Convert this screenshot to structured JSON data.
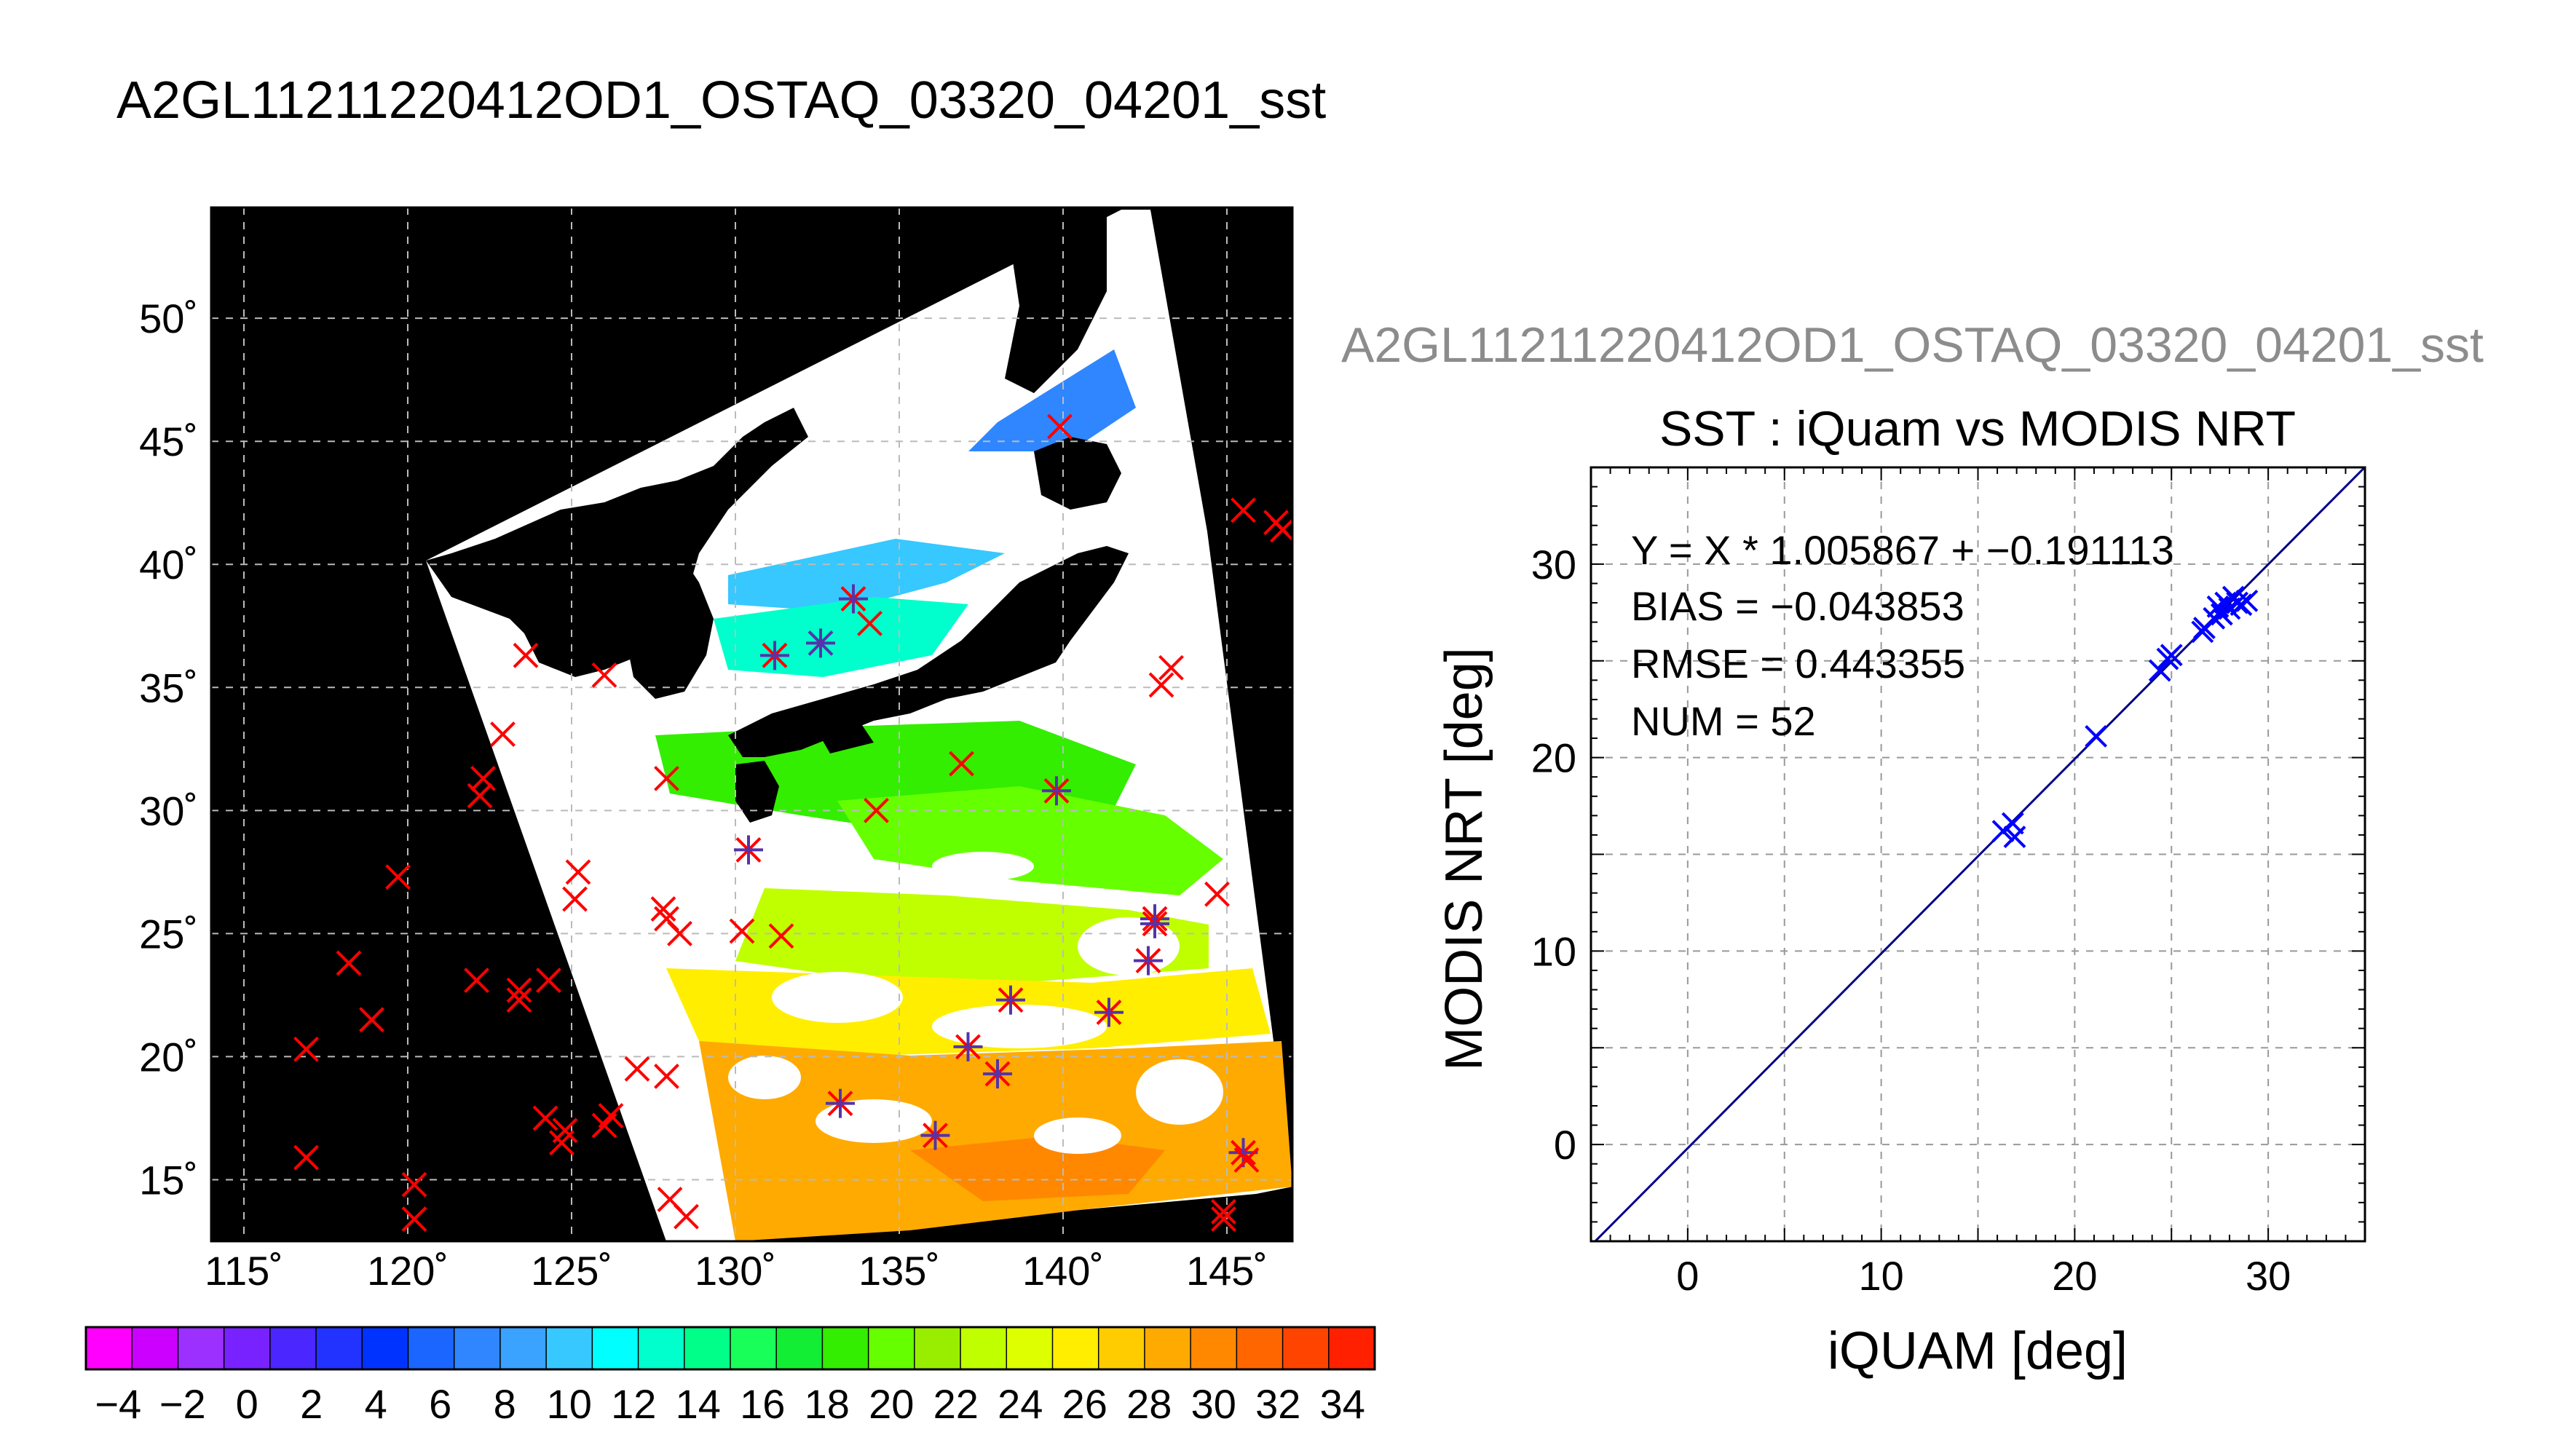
{
  "title": "A2GL11211220412OD1_OSTAQ_03320_04201_sst",
  "chart_data": [
    {
      "type": "map",
      "xticks": [
        "115˚",
        "120˚",
        "125˚",
        "130˚",
        "135˚",
        "140˚",
        "145˚"
      ],
      "yticks": [
        "50˚",
        "45˚",
        "40˚",
        "35˚",
        "30˚",
        "25˚",
        "20˚",
        "15˚"
      ],
      "lon_range": [
        114,
        147
      ],
      "lat_range": [
        12.5,
        54.5
      ],
      "grid": true,
      "buoys": [
        {
          "lon": 139.9,
          "lat": 45.6,
          "m": "x"
        },
        {
          "lon": 145.5,
          "lat": 42.2,
          "m": "x"
        },
        {
          "lon": 146.5,
          "lat": 41.7,
          "m": "x"
        },
        {
          "lon": 146.7,
          "lat": 41.4,
          "m": "x"
        },
        {
          "lon": 123.6,
          "lat": 36.3,
          "m": "x"
        },
        {
          "lon": 126.0,
          "lat": 35.5,
          "m": "x"
        },
        {
          "lon": 133.6,
          "lat": 38.6,
          "m": "both"
        },
        {
          "lon": 134.1,
          "lat": 37.6,
          "m": "x"
        },
        {
          "lon": 131.2,
          "lat": 36.3,
          "m": "both"
        },
        {
          "lon": 132.6,
          "lat": 36.8,
          "m": "plus"
        },
        {
          "lon": 143.3,
          "lat": 35.8,
          "m": "x"
        },
        {
          "lon": 143.0,
          "lat": 35.1,
          "m": "x"
        },
        {
          "lon": 122.9,
          "lat": 33.1,
          "m": "x"
        },
        {
          "lon": 122.3,
          "lat": 31.3,
          "m": "x"
        },
        {
          "lon": 122.2,
          "lat": 30.6,
          "m": "x"
        },
        {
          "lon": 127.9,
          "lat": 31.3,
          "m": "x"
        },
        {
          "lon": 136.9,
          "lat": 31.9,
          "m": "x"
        },
        {
          "lon": 134.3,
          "lat": 30.0,
          "m": "x"
        },
        {
          "lon": 139.8,
          "lat": 30.8,
          "m": "both"
        },
        {
          "lon": 130.4,
          "lat": 28.4,
          "m": "both"
        },
        {
          "lon": 125.2,
          "lat": 27.5,
          "m": "x"
        },
        {
          "lon": 125.1,
          "lat": 26.4,
          "m": "x"
        },
        {
          "lon": 119.7,
          "lat": 27.3,
          "m": "x"
        },
        {
          "lon": 127.8,
          "lat": 26.0,
          "m": "x"
        },
        {
          "lon": 127.9,
          "lat": 25.6,
          "m": "x"
        },
        {
          "lon": 128.3,
          "lat": 25.0,
          "m": "x"
        },
        {
          "lon": 130.2,
          "lat": 25.1,
          "m": "x"
        },
        {
          "lon": 131.4,
          "lat": 24.9,
          "m": "x"
        },
        {
          "lon": 142.8,
          "lat": 25.6,
          "m": "both"
        },
        {
          "lon": 142.8,
          "lat": 25.4,
          "m": "both"
        },
        {
          "lon": 144.7,
          "lat": 26.6,
          "m": "x"
        },
        {
          "lon": 142.6,
          "lat": 23.9,
          "m": "both"
        },
        {
          "lon": 118.2,
          "lat": 23.8,
          "m": "x"
        },
        {
          "lon": 122.1,
          "lat": 23.1,
          "m": "x"
        },
        {
          "lon": 123.4,
          "lat": 22.3,
          "m": "x"
        },
        {
          "lon": 123.4,
          "lat": 22.7,
          "m": "x"
        },
        {
          "lon": 124.3,
          "lat": 23.1,
          "m": "x"
        },
        {
          "lon": 118.9,
          "lat": 21.5,
          "m": "x"
        },
        {
          "lon": 141.4,
          "lat": 21.8,
          "m": "both"
        },
        {
          "lon": 138.4,
          "lat": 22.3,
          "m": "both"
        },
        {
          "lon": 137.1,
          "lat": 20.4,
          "m": "both"
        },
        {
          "lon": 138.0,
          "lat": 19.3,
          "m": "both"
        },
        {
          "lon": 116.9,
          "lat": 20.3,
          "m": "x"
        },
        {
          "lon": 127.0,
          "lat": 19.5,
          "m": "x"
        },
        {
          "lon": 127.9,
          "lat": 19.2,
          "m": "x"
        },
        {
          "lon": 124.2,
          "lat": 17.5,
          "m": "x"
        },
        {
          "lon": 124.8,
          "lat": 17.0,
          "m": "x"
        },
        {
          "lon": 124.7,
          "lat": 16.5,
          "m": "x"
        },
        {
          "lon": 126.0,
          "lat": 17.2,
          "m": "x"
        },
        {
          "lon": 126.2,
          "lat": 17.6,
          "m": "x"
        },
        {
          "lon": 133.2,
          "lat": 18.1,
          "m": "both"
        },
        {
          "lon": 136.1,
          "lat": 16.8,
          "m": "both"
        },
        {
          "lon": 145.5,
          "lat": 16.1,
          "m": "both"
        },
        {
          "lon": 145.6,
          "lat": 15.8,
          "m": "x"
        },
        {
          "lon": 116.9,
          "lat": 15.9,
          "m": "x"
        },
        {
          "lon": 120.2,
          "lat": 14.8,
          "m": "x"
        },
        {
          "lon": 120.2,
          "lat": 13.4,
          "m": "x"
        },
        {
          "lon": 128.0,
          "lat": 14.2,
          "m": "x"
        },
        {
          "lon": 128.5,
          "lat": 13.5,
          "m": "x"
        },
        {
          "lon": 144.9,
          "lat": 13.7,
          "m": "x"
        },
        {
          "lon": 144.9,
          "lat": 13.4,
          "m": "x"
        }
      ]
    },
    {
      "type": "colorbar",
      "ticks": [
        "−4",
        "−2",
        "0",
        "2",
        "4",
        "6",
        "8",
        "10",
        "12",
        "14",
        "16",
        "18",
        "20",
        "22",
        "24",
        "26",
        "28",
        "30",
        "32",
        "34"
      ],
      "range": [
        -5,
        35
      ],
      "colors": [
        "#ff00ff",
        "#cc00ff",
        "#9b30ff",
        "#7722ff",
        "#4b26ff",
        "#2233ff",
        "#0033ff",
        "#1a66ff",
        "#2f86ff",
        "#3aa2ff",
        "#37c8ff",
        "#00ffff",
        "#00ffcc",
        "#00ff88",
        "#19ff5a",
        "#11ee33",
        "#33ee00",
        "#66ff00",
        "#99ee00",
        "#c0ff00",
        "#ddff00",
        "#ffee00",
        "#ffcc00",
        "#ffaa00",
        "#ff8800",
        "#ff6600",
        "#ff4400",
        "#ff2000"
      ]
    },
    {
      "type": "scatter",
      "subtitle": "A2GL11211220412OD1_OSTAQ_03320_04201_sst",
      "title": "SST : iQuam vs MODIS NRT",
      "xlabel": "iQUAM [deg]",
      "ylabel": "MODIS NRT [deg]",
      "xlim": [
        -5,
        35
      ],
      "ylim": [
        -5,
        35
      ],
      "xticks": [
        "0",
        "10",
        "20",
        "30"
      ],
      "yticks": [
        "0",
        "10",
        "20",
        "30"
      ],
      "grid": true,
      "fit": {
        "slope": 1.005867,
        "intercept": -0.191113
      },
      "stats": [
        "Y = X * 1.005867 + −0.191113",
        "BIAS = −0.043853",
        "RMSE = 0.443355",
        "NUM = 52"
      ],
      "points": [
        [
          16.3,
          16.2
        ],
        [
          16.8,
          16.6
        ],
        [
          16.9,
          15.9
        ],
        [
          21.1,
          21.1
        ],
        [
          24.4,
          24.5
        ],
        [
          24.8,
          25.1
        ],
        [
          25.0,
          25.3
        ],
        [
          26.6,
          26.5
        ],
        [
          26.7,
          26.7
        ],
        [
          27.2,
          27.2
        ],
        [
          27.4,
          27.8
        ],
        [
          27.6,
          27.4
        ],
        [
          27.8,
          28.0
        ],
        [
          28.0,
          27.7
        ],
        [
          28.2,
          28.3
        ],
        [
          28.4,
          28.0
        ],
        [
          28.6,
          27.9
        ],
        [
          28.9,
          28.1
        ]
      ]
    }
  ]
}
